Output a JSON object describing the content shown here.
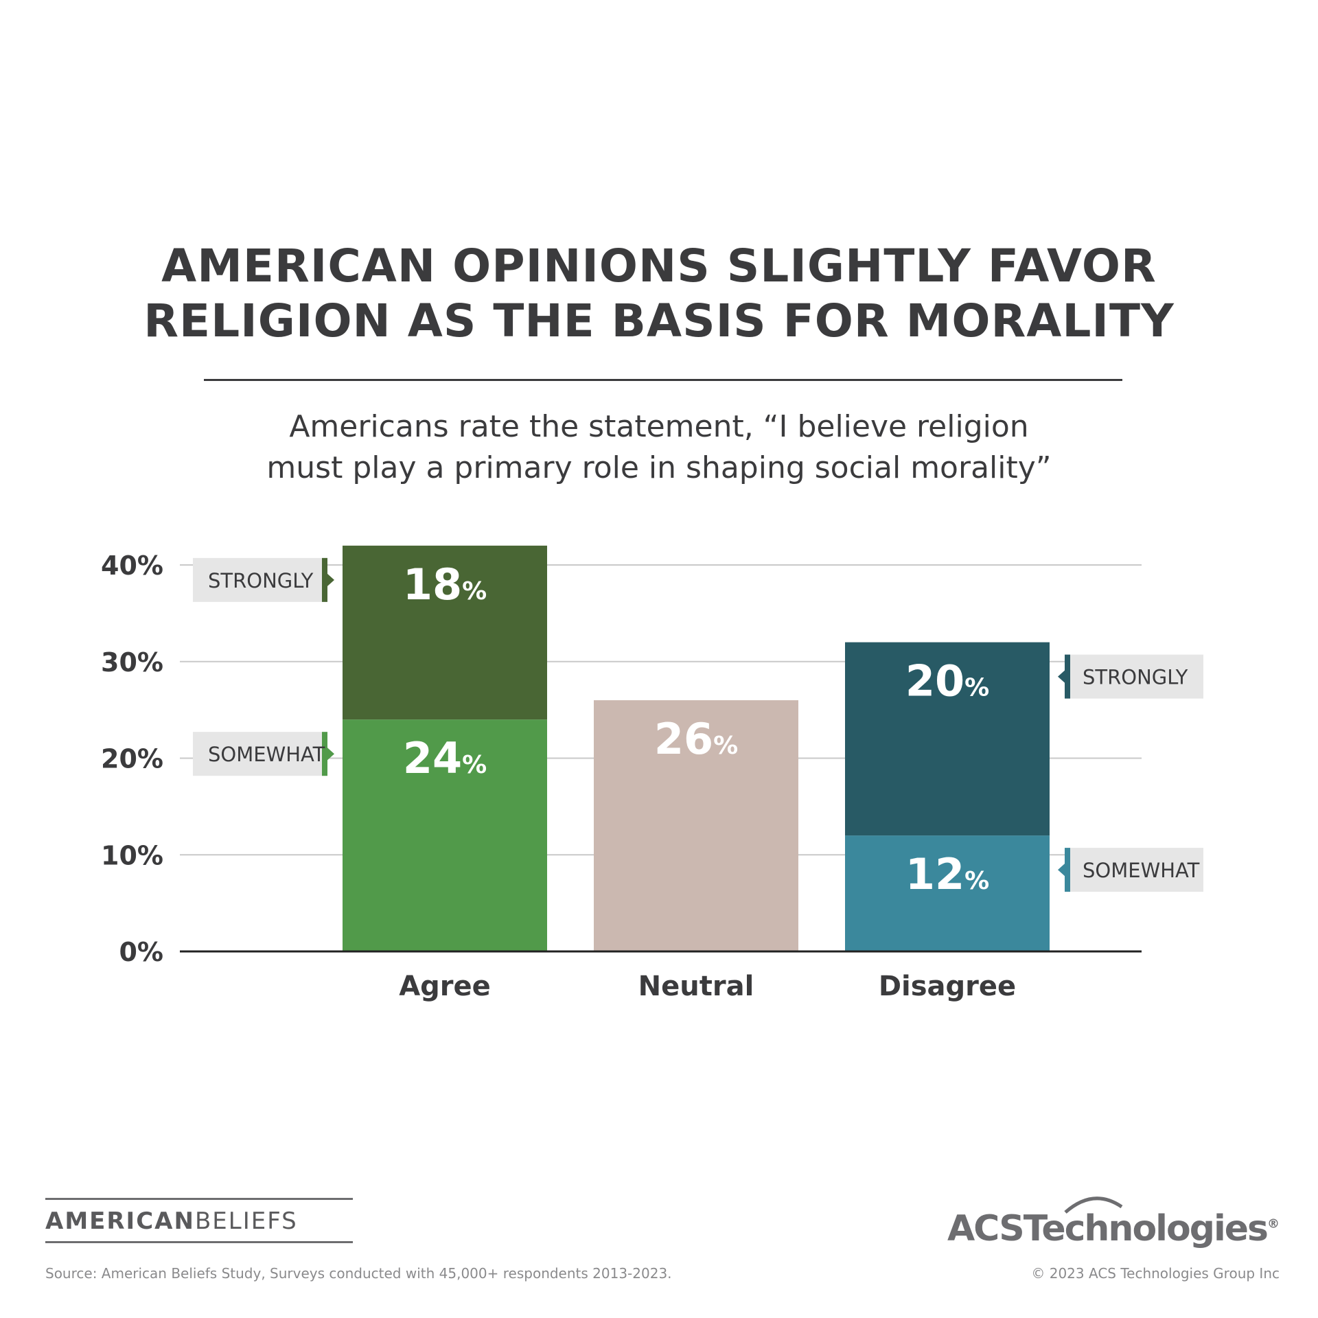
{
  "header": {
    "title_lines": [
      "AMERICAN OPINIONS SLIGHTLY FAVOR",
      "RELIGION AS THE BASIS FOR MORALITY"
    ],
    "subtitle_lines": [
      "Americans rate the statement, “I believe religion",
      "must play a primary role in shaping social morality”"
    ]
  },
  "chart_data": {
    "type": "bar",
    "stacked": true,
    "title": "AMERICAN OPINIONS SLIGHTLY FAVOR RELIGION AS THE BASIS FOR MORALITY",
    "subtitle": "Americans rate the statement, “I believe religion must play a primary role in shaping social morality”",
    "categories": [
      "Agree",
      "Neutral",
      "Disagree"
    ],
    "y_ticks": [
      "0%",
      "10%",
      "20%",
      "30%",
      "40%"
    ],
    "ylim": [
      0,
      40
    ],
    "grid": true,
    "segments": [
      {
        "category": "Agree",
        "label": "SOMEWHAT",
        "value": 24,
        "color": "#519a4a",
        "label_side": "left"
      },
      {
        "category": "Agree",
        "label": "STRONGLY",
        "value": 18,
        "color": "#496634",
        "label_side": "left"
      },
      {
        "category": "Neutral",
        "label": "",
        "value": 26,
        "color": "#cbb8b0",
        "label_side": "none"
      },
      {
        "category": "Disagree",
        "label": "SOMEWHAT",
        "value": 12,
        "color": "#3b889c",
        "label_side": "right"
      },
      {
        "category": "Disagree",
        "label": "STRONGLY",
        "value": 20,
        "color": "#285a65",
        "label_side": "right"
      }
    ],
    "percent_sign": "%"
  },
  "footer": {
    "brand_bold": "AMERICAN",
    "brand_light": "BELIEFS",
    "source": "Source: American Beliefs Study, Surveys conducted with 45,000+ respondents 2013-2023.",
    "company_logo": "ACSTechnologies",
    "copyright": "© 2023 ACS Technologies Group Inc"
  }
}
